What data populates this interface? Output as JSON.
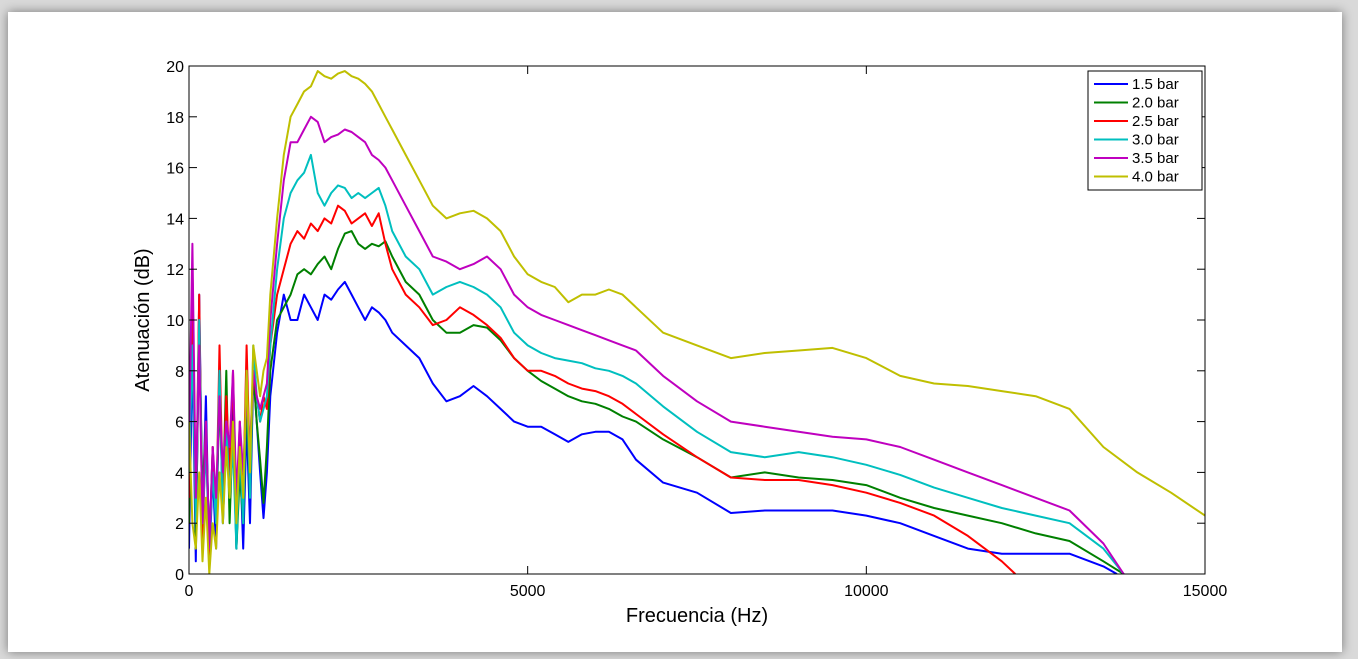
{
  "chart_data": {
    "type": "line",
    "xlabel": "Frecuencia (Hz)",
    "ylabel": "Atenuación (dB)",
    "xlim": [
      0,
      15000
    ],
    "ylim": [
      0,
      20
    ],
    "xticks": [
      "0",
      "5000",
      "10000",
      "15000"
    ],
    "yticks": [
      "0",
      "2",
      "4",
      "6",
      "8",
      "10",
      "12",
      "14",
      "16",
      "18",
      "20"
    ],
    "grid": false,
    "legend_position": "top-right",
    "series": [
      {
        "name": "1.5 bar",
        "color": "#0000ff",
        "x": [
          0,
          50,
          100,
          150,
          200,
          250,
          300,
          350,
          400,
          450,
          500,
          550,
          600,
          650,
          700,
          750,
          800,
          850,
          900,
          950,
          1000,
          1050,
          1100,
          1150,
          1200,
          1300,
          1400,
          1500,
          1600,
          1700,
          1800,
          1900,
          2000,
          2100,
          2200,
          2300,
          2400,
          2500,
          2600,
          2700,
          2800,
          2900,
          3000,
          3200,
          3400,
          3600,
          3800,
          4000,
          4200,
          4400,
          4600,
          4800,
          5000,
          5200,
          5400,
          5600,
          5800,
          6000,
          6200,
          6400,
          6600,
          7000,
          7500,
          8000,
          8500,
          9000,
          9500,
          10000,
          10500,
          11000,
          11500,
          12000,
          12500,
          13000,
          13500,
          13700
        ],
        "y": [
          1,
          9,
          0.5,
          11,
          2,
          7,
          0.5,
          4,
          1,
          8,
          2,
          6,
          3,
          7,
          1,
          5,
          1,
          6,
          2,
          8,
          6,
          4,
          2.2,
          4,
          7,
          9.5,
          11,
          10,
          10,
          11,
          10.5,
          10,
          11,
          10.8,
          11.2,
          11.5,
          11,
          10.5,
          10,
          10.5,
          10.3,
          10,
          9.5,
          9,
          8.5,
          7.5,
          6.8,
          7,
          7.4,
          7,
          6.5,
          6,
          5.8,
          5.8,
          5.5,
          5.2,
          5.5,
          5.6,
          5.6,
          5.3,
          4.5,
          3.6,
          3.2,
          2.4,
          2.5,
          2.5,
          2.5,
          2.3,
          2,
          1.5,
          1,
          0.8,
          0.8,
          0.8,
          0.3,
          0
        ]
      },
      {
        "name": "2.0 bar",
        "color": "#008000",
        "x": [
          0,
          50,
          100,
          150,
          200,
          250,
          300,
          350,
          400,
          450,
          500,
          550,
          600,
          650,
          700,
          750,
          800,
          850,
          900,
          950,
          1000,
          1050,
          1100,
          1150,
          1200,
          1300,
          1400,
          1500,
          1600,
          1700,
          1800,
          1900,
          2000,
          2100,
          2200,
          2300,
          2400,
          2500,
          2600,
          2700,
          2800,
          2900,
          3000,
          3200,
          3400,
          3600,
          3800,
          4000,
          4200,
          4400,
          4600,
          4800,
          5000,
          5200,
          5400,
          5600,
          5800,
          6000,
          6200,
          6400,
          6600,
          7000,
          7500,
          8000,
          8500,
          9000,
          9500,
          10000,
          10500,
          11000,
          11500,
          12000,
          12500,
          13000,
          13500,
          13800
        ],
        "y": [
          2,
          12,
          1,
          10,
          3,
          6,
          1,
          5,
          2,
          7,
          3,
          8,
          2,
          6,
          1,
          4,
          2,
          7,
          3,
          8,
          6,
          4.5,
          2.8,
          5,
          8,
          10,
          10.5,
          11,
          11.8,
          12,
          11.8,
          12.2,
          12.5,
          12,
          12.8,
          13.4,
          13.5,
          13,
          12.8,
          13,
          12.9,
          13.1,
          12.5,
          11.5,
          11,
          10,
          9.5,
          9.5,
          9.8,
          9.7,
          9.2,
          8.5,
          8,
          7.6,
          7.3,
          7,
          6.8,
          6.7,
          6.5,
          6.2,
          6,
          5.3,
          4.6,
          3.8,
          4,
          3.8,
          3.7,
          3.5,
          3,
          2.6,
          2.3,
          2,
          1.6,
          1.3,
          0.5,
          0
        ]
      },
      {
        "name": "2.5 bar",
        "color": "#ff0000",
        "x": [
          0,
          50,
          100,
          150,
          200,
          250,
          300,
          350,
          400,
          450,
          500,
          550,
          600,
          650,
          700,
          750,
          800,
          850,
          900,
          950,
          1000,
          1050,
          1100,
          1150,
          1200,
          1300,
          1400,
          1500,
          1600,
          1700,
          1800,
          1900,
          2000,
          2100,
          2200,
          2300,
          2400,
          2500,
          2600,
          2700,
          2800,
          2900,
          3000,
          3200,
          3400,
          3600,
          3800,
          4000,
          4200,
          4400,
          4600,
          4800,
          5000,
          5200,
          5400,
          5600,
          5800,
          6000,
          6200,
          6400,
          6600,
          7000,
          7500,
          8000,
          8500,
          9000,
          9500,
          10000,
          10500,
          11000,
          11500,
          12000,
          12200
        ],
        "y": [
          3,
          12,
          2,
          11,
          1,
          6,
          0.5,
          5,
          2,
          9,
          3,
          7,
          4,
          8,
          2,
          6,
          3,
          9,
          4,
          8,
          7,
          6,
          7,
          6.5,
          9,
          11,
          12,
          13,
          13.5,
          13.2,
          13.8,
          13.5,
          14,
          13.8,
          14.5,
          14.3,
          13.8,
          14,
          14.2,
          13.7,
          14.2,
          13,
          12,
          11,
          10.5,
          9.8,
          10,
          10.5,
          10.2,
          9.8,
          9.3,
          8.5,
          8,
          8,
          7.8,
          7.5,
          7.3,
          7.2,
          7,
          6.7,
          6.3,
          5.5,
          4.6,
          3.8,
          3.7,
          3.7,
          3.5,
          3.2,
          2.8,
          2.3,
          1.5,
          0.5,
          0
        ]
      },
      {
        "name": "3.0 bar",
        "color": "#00bfbf",
        "x": [
          0,
          50,
          100,
          150,
          200,
          250,
          300,
          350,
          400,
          450,
          500,
          550,
          600,
          650,
          700,
          750,
          800,
          850,
          900,
          950,
          1000,
          1050,
          1100,
          1150,
          1200,
          1300,
          1400,
          1500,
          1600,
          1700,
          1800,
          1900,
          2000,
          2100,
          2200,
          2300,
          2400,
          2500,
          2600,
          2700,
          2800,
          2900,
          3000,
          3200,
          3400,
          3600,
          3800,
          4000,
          4200,
          4400,
          4600,
          4800,
          5000,
          5200,
          5400,
          5600,
          5800,
          6000,
          6200,
          6400,
          6600,
          7000,
          7500,
          8000,
          8500,
          9000,
          9500,
          10000,
          10500,
          11000,
          11500,
          12000,
          12500,
          13000,
          13500,
          13800
        ],
        "y": [
          4,
          9,
          2,
          10,
          2,
          5,
          1,
          4,
          2,
          8,
          2,
          6,
          3,
          5,
          1,
          5,
          2,
          8,
          3,
          9,
          7,
          6,
          6.5,
          7,
          9,
          12,
          14,
          15,
          15.5,
          15.8,
          16.5,
          15,
          14.5,
          15,
          15.3,
          15.2,
          14.8,
          15,
          14.8,
          15,
          15.2,
          14.5,
          13.5,
          12.5,
          12,
          11,
          11.3,
          11.5,
          11.3,
          11,
          10.5,
          9.5,
          9,
          8.7,
          8.5,
          8.4,
          8.3,
          8.1,
          8,
          7.8,
          7.5,
          6.6,
          5.6,
          4.8,
          4.6,
          4.8,
          4.6,
          4.3,
          3.9,
          3.4,
          3,
          2.6,
          2.3,
          2,
          1,
          0
        ]
      },
      {
        "name": "3.5 bar",
        "color": "#bf00bf",
        "x": [
          0,
          50,
          100,
          150,
          200,
          250,
          300,
          350,
          400,
          450,
          500,
          550,
          600,
          650,
          700,
          750,
          800,
          850,
          900,
          950,
          1000,
          1050,
          1100,
          1150,
          1200,
          1300,
          1400,
          1500,
          1600,
          1700,
          1800,
          1900,
          2000,
          2100,
          2200,
          2300,
          2400,
          2500,
          2600,
          2700,
          2800,
          2900,
          3000,
          3200,
          3400,
          3600,
          3800,
          4000,
          4200,
          4400,
          4600,
          4800,
          5000,
          5200,
          5400,
          5600,
          5800,
          6000,
          6200,
          6400,
          6600,
          7000,
          7500,
          8000,
          8500,
          9000,
          9500,
          10000,
          10500,
          11000,
          11500,
          12000,
          12500,
          13000,
          13500,
          13800
        ],
        "y": [
          5,
          13,
          3,
          9,
          2,
          6,
          1,
          5,
          3,
          7,
          4,
          6,
          5,
          8,
          3,
          6,
          4,
          7,
          5,
          8,
          7,
          6.5,
          7,
          7.5,
          10,
          13,
          15.5,
          17,
          17,
          17.5,
          18,
          17.8,
          17,
          17.2,
          17.3,
          17.5,
          17.4,
          17.2,
          17,
          16.5,
          16.3,
          16,
          15.5,
          14.5,
          13.5,
          12.5,
          12.3,
          12,
          12.2,
          12.5,
          12,
          11,
          10.5,
          10.2,
          10,
          9.8,
          9.6,
          9.4,
          9.2,
          9,
          8.8,
          7.8,
          6.8,
          6,
          5.8,
          5.6,
          5.4,
          5.3,
          5,
          4.5,
          4,
          3.5,
          3,
          2.5,
          1.2,
          0
        ]
      },
      {
        "name": "4.0 bar",
        "color": "#bfbf00",
        "x": [
          0,
          50,
          100,
          150,
          200,
          250,
          300,
          350,
          400,
          450,
          500,
          550,
          600,
          650,
          700,
          750,
          800,
          850,
          900,
          950,
          1000,
          1050,
          1100,
          1150,
          1200,
          1300,
          1400,
          1500,
          1600,
          1700,
          1800,
          1900,
          2000,
          2100,
          2200,
          2300,
          2400,
          2500,
          2600,
          2700,
          2800,
          2900,
          3000,
          3200,
          3400,
          3600,
          3800,
          4000,
          4200,
          4400,
          4600,
          4800,
          5000,
          5200,
          5400,
          5600,
          5800,
          6000,
          6200,
          6400,
          6600,
          7000,
          7500,
          8000,
          8500,
          9000,
          9500,
          10000,
          10500,
          11000,
          11500,
          12000,
          12500,
          13000,
          13500,
          14000,
          14500,
          15000
        ],
        "y": [
          6,
          2,
          1,
          4,
          0.5,
          3,
          0,
          2,
          1,
          4,
          2,
          5,
          3,
          6,
          2,
          5,
          3,
          8,
          4,
          9,
          8,
          7,
          8,
          8.5,
          11,
          14,
          16.5,
          18,
          18.5,
          19,
          19.2,
          19.8,
          19.6,
          19.5,
          19.7,
          19.8,
          19.6,
          19.5,
          19.3,
          19,
          18.5,
          18,
          17.5,
          16.5,
          15.5,
          14.5,
          14,
          14.2,
          14.3,
          14,
          13.5,
          12.5,
          11.8,
          11.5,
          11.3,
          10.7,
          11,
          11,
          11.2,
          11,
          10.5,
          9.5,
          9,
          8.5,
          8.7,
          8.8,
          8.9,
          8.5,
          7.8,
          7.5,
          7.4,
          7.2,
          7,
          6.5,
          5,
          4,
          3.2,
          2.3
        ]
      }
    ]
  }
}
